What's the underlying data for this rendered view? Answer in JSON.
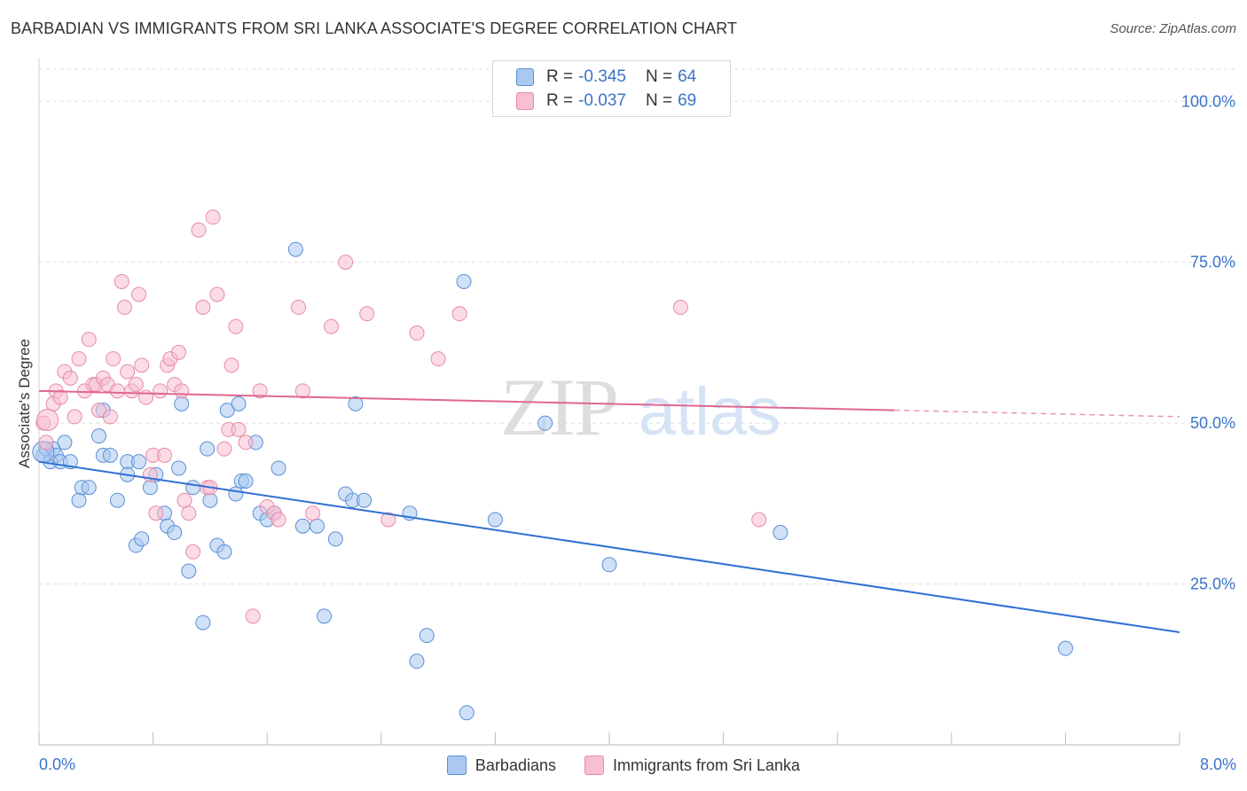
{
  "header": {
    "title": "BARBADIAN VS IMMIGRANTS FROM SRI LANKA ASSOCIATE'S DEGREE CORRELATION CHART",
    "source": "Source: ZipAtlas.com"
  },
  "watermark": {
    "zip": "ZIP",
    "atlas": "atlas"
  },
  "legend": {
    "r_label": "R =",
    "n_label": "N =",
    "series": [
      {
        "name": "Barbadians",
        "r": "-0.345",
        "n": "64",
        "fill": "#aac8f0",
        "stroke": "#5a8fd6",
        "line": "#2f6fd3"
      },
      {
        "name": "Immigrants from Sri Lanka",
        "r": "-0.037",
        "n": "69",
        "fill": "#f7bfd1",
        "stroke": "#e88aa7",
        "line": "#e0678f"
      }
    ]
  },
  "chart_data": {
    "type": "scatter",
    "title": "BARBADIAN VS IMMIGRANTS FROM SRI LANKA ASSOCIATE'S DEGREE CORRELATION CHART",
    "xlabel": "",
    "ylabel": "Associate's Degree",
    "xlim": [
      0,
      8
    ],
    "ylim": [
      0,
      105
    ],
    "x_tick_labels": [
      "0.0%",
      "8.0%"
    ],
    "y_ticks": [
      25,
      50,
      75,
      100
    ],
    "y_tick_labels": [
      "25.0%",
      "50.0%",
      "75.0%",
      "100.0%"
    ],
    "grid": true,
    "series": [
      {
        "name": "Barbadians",
        "trend": {
          "x": [
            0,
            8
          ],
          "y": [
            44,
            17.5
          ],
          "solid_until": 8
        },
        "points": [
          [
            0.03,
            45
          ],
          [
            0.05,
            46
          ],
          [
            0.08,
            44
          ],
          [
            0.1,
            46
          ],
          [
            0.12,
            45
          ],
          [
            0.15,
            44
          ],
          [
            0.18,
            47
          ],
          [
            0.22,
            44
          ],
          [
            0.28,
            38
          ],
          [
            0.3,
            40
          ],
          [
            0.35,
            40
          ],
          [
            0.42,
            48
          ],
          [
            0.45,
            45
          ],
          [
            0.5,
            45
          ],
          [
            0.55,
            38
          ],
          [
            0.62,
            44
          ],
          [
            0.62,
            42
          ],
          [
            0.68,
            31
          ],
          [
            0.7,
            44
          ],
          [
            0.72,
            32
          ],
          [
            0.78,
            40
          ],
          [
            0.82,
            42
          ],
          [
            0.88,
            36
          ],
          [
            0.9,
            34
          ],
          [
            0.95,
            33
          ],
          [
            0.98,
            43
          ],
          [
            1.0,
            53
          ],
          [
            1.05,
            27
          ],
          [
            1.08,
            40
          ],
          [
            1.15,
            19
          ],
          [
            1.18,
            46
          ],
          [
            1.2,
            38
          ],
          [
            1.25,
            31
          ],
          [
            1.3,
            30
          ],
          [
            1.32,
            52
          ],
          [
            1.38,
            39
          ],
          [
            1.4,
            53
          ],
          [
            1.42,
            41
          ],
          [
            1.45,
            41
          ],
          [
            1.52,
            47
          ],
          [
            1.55,
            36
          ],
          [
            1.6,
            35
          ],
          [
            1.65,
            36
          ],
          [
            1.68,
            43
          ],
          [
            1.8,
            77
          ],
          [
            1.85,
            34
          ],
          [
            1.95,
            34
          ],
          [
            2.0,
            20
          ],
          [
            2.08,
            32
          ],
          [
            2.15,
            39
          ],
          [
            2.2,
            38
          ],
          [
            2.22,
            53
          ],
          [
            2.28,
            38
          ],
          [
            2.6,
            36
          ],
          [
            2.65,
            13
          ],
          [
            2.72,
            17
          ],
          [
            2.98,
            72
          ],
          [
            3.0,
            5
          ],
          [
            3.2,
            35
          ],
          [
            3.55,
            50
          ],
          [
            4.0,
            28
          ],
          [
            5.2,
            33
          ],
          [
            7.2,
            15
          ],
          [
            0.45,
            52
          ]
        ]
      },
      {
        "name": "Immigrants from Sri Lanka",
        "trend": {
          "x": [
            0,
            8
          ],
          "y": [
            55,
            51
          ],
          "solid_until": 6
        },
        "points": [
          [
            0.03,
            50
          ],
          [
            0.05,
            47
          ],
          [
            0.1,
            53
          ],
          [
            0.12,
            55
          ],
          [
            0.15,
            54
          ],
          [
            0.18,
            58
          ],
          [
            0.22,
            57
          ],
          [
            0.25,
            51
          ],
          [
            0.28,
            60
          ],
          [
            0.32,
            55
          ],
          [
            0.35,
            63
          ],
          [
            0.38,
            56
          ],
          [
            0.4,
            56
          ],
          [
            0.42,
            52
          ],
          [
            0.45,
            57
          ],
          [
            0.48,
            56
          ],
          [
            0.5,
            51
          ],
          [
            0.52,
            60
          ],
          [
            0.55,
            55
          ],
          [
            0.58,
            72
          ],
          [
            0.6,
            68
          ],
          [
            0.62,
            58
          ],
          [
            0.65,
            55
          ],
          [
            0.68,
            56
          ],
          [
            0.7,
            70
          ],
          [
            0.72,
            59
          ],
          [
            0.75,
            54
          ],
          [
            0.78,
            42
          ],
          [
            0.8,
            45
          ],
          [
            0.82,
            36
          ],
          [
            0.85,
            55
          ],
          [
            0.88,
            45
          ],
          [
            0.9,
            59
          ],
          [
            0.92,
            60
          ],
          [
            0.95,
            56
          ],
          [
            0.98,
            61
          ],
          [
            1.0,
            55
          ],
          [
            1.02,
            38
          ],
          [
            1.05,
            36
          ],
          [
            1.08,
            30
          ],
          [
            1.12,
            80
          ],
          [
            1.15,
            68
          ],
          [
            1.18,
            40
          ],
          [
            1.2,
            40
          ],
          [
            1.22,
            82
          ],
          [
            1.25,
            70
          ],
          [
            1.3,
            46
          ],
          [
            1.33,
            49
          ],
          [
            1.35,
            59
          ],
          [
            1.38,
            65
          ],
          [
            1.4,
            49
          ],
          [
            1.45,
            47
          ],
          [
            1.5,
            20
          ],
          [
            1.55,
            55
          ],
          [
            1.6,
            37
          ],
          [
            1.65,
            36
          ],
          [
            1.68,
            35
          ],
          [
            1.82,
            68
          ],
          [
            1.85,
            55
          ],
          [
            1.92,
            36
          ],
          [
            2.05,
            65
          ],
          [
            2.15,
            75
          ],
          [
            2.3,
            67
          ],
          [
            2.45,
            35
          ],
          [
            2.65,
            64
          ],
          [
            2.95,
            67
          ],
          [
            4.5,
            68
          ],
          [
            5.05,
            35
          ],
          [
            2.8,
            60
          ]
        ]
      }
    ]
  }
}
